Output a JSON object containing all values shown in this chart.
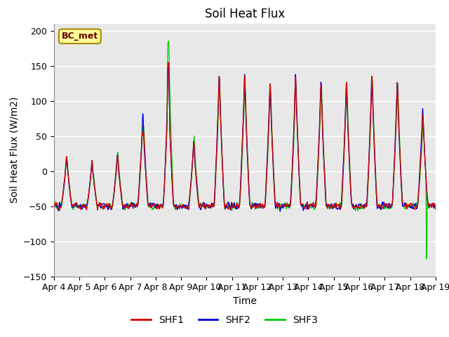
{
  "title": "Soil Heat Flux",
  "xlabel": "Time",
  "ylabel": "Soil Heat Flux (W/m2)",
  "ylim": [
    -150,
    210
  ],
  "yticks": [
    -150,
    -100,
    -50,
    0,
    50,
    100,
    150,
    200
  ],
  "x_labels": [
    "Apr 4",
    "Apr 5",
    "Apr 6",
    "Apr 7",
    "Apr 8",
    "Apr 9",
    "Apr 10",
    "Apr 11",
    "Apr 12",
    "Apr 13",
    "Apr 14",
    "Apr 15",
    "Apr 16",
    "Apr 17",
    "Apr 18",
    "Apr 19"
  ],
  "colors": {
    "SHF1": "#dd0000",
    "SHF2": "#0000dd",
    "SHF3": "#00cc00"
  },
  "legend_label": "BC_met",
  "fig_bg": "#d8d8d8",
  "plot_bg": "#e8e8e8",
  "title_fontsize": 12,
  "label_fontsize": 10,
  "tick_fontsize": 9,
  "day_amplitudes_shf1": [
    0.5,
    0.35,
    0.55,
    1.7,
    2.4,
    0.9,
    2.7,
    2.7,
    2.5,
    2.7,
    2.5,
    2.5,
    2.7,
    2.5,
    1.6
  ],
  "day_amplitudes_shf2": [
    0.5,
    0.35,
    0.55,
    1.6,
    2.4,
    0.85,
    2.7,
    2.7,
    2.5,
    2.7,
    2.5,
    2.5,
    2.7,
    2.5,
    1.8
  ],
  "day_amplitudes_shf3": [
    0.5,
    0.35,
    0.6,
    1.6,
    3.5,
    1.0,
    2.6,
    2.6,
    2.4,
    2.5,
    2.5,
    2.5,
    2.7,
    2.5,
    1.5
  ],
  "night_base": -50,
  "peak_scale": 58
}
